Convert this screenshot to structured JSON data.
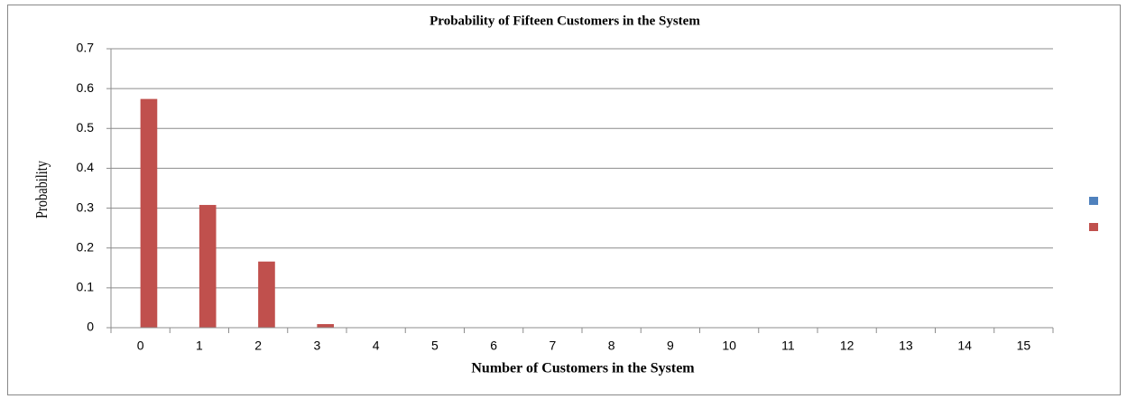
{
  "chart_data": {
    "type": "bar",
    "title": "Probability of Fifteen Customers in the System",
    "xlabel": "Number of Customers in the System",
    "ylabel": "Probability",
    "categories": [
      "0",
      "1",
      "2",
      "3",
      "4",
      "5",
      "6",
      "7",
      "8",
      "9",
      "10",
      "11",
      "12",
      "13",
      "14",
      "15"
    ],
    "series": [
      {
        "color": "#4f81bd",
        "values": [
          0,
          0,
          0,
          0,
          0,
          0,
          0,
          0,
          0,
          0,
          0,
          0,
          0,
          0,
          0,
          0
        ]
      },
      {
        "color": "#c0504d",
        "values": [
          0.574,
          0.308,
          0.166,
          0.009,
          0,
          0,
          0,
          0,
          0,
          0,
          0,
          0,
          0,
          0,
          0,
          0
        ]
      }
    ],
    "ylim": [
      0,
      0.7
    ],
    "yticks": [
      0,
      0.1,
      0.2,
      0.3,
      0.4,
      0.5,
      0.6,
      0.7
    ],
    "grid": true,
    "legend": "right"
  }
}
